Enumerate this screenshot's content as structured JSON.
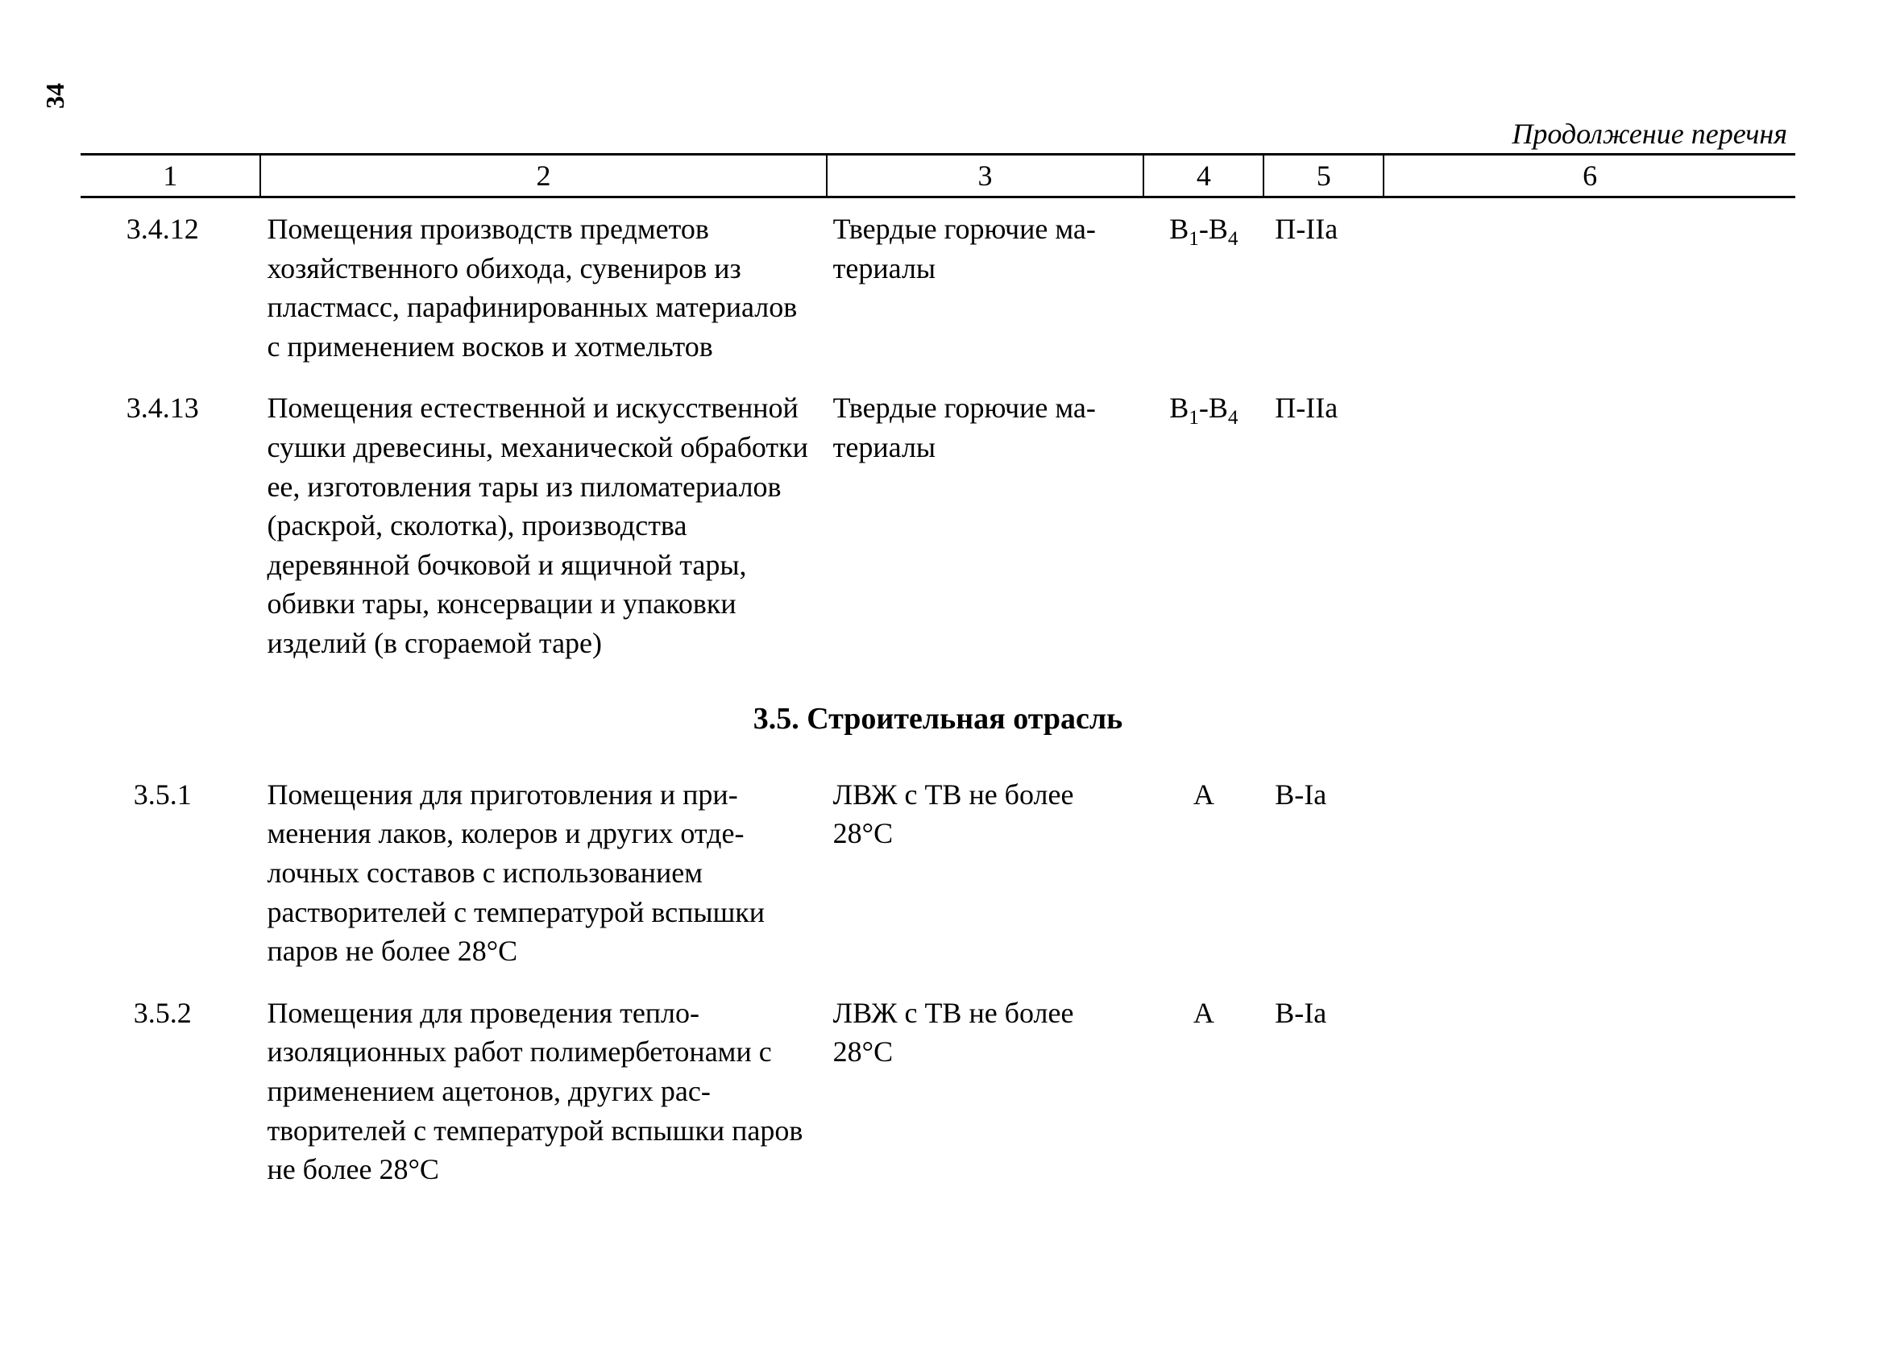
{
  "page_number": "34",
  "continuation_label": "Продолжение перечня",
  "colors": {
    "background": "#ffffff",
    "text": "#000000",
    "border": "#000000"
  },
  "typography": {
    "font_family": "Times New Roman",
    "body_fontsize": 36,
    "heading_fontsize": 38,
    "continuation_fontsize": 36,
    "page_number_fontsize": 32
  },
  "table": {
    "type": "table",
    "column_widths_pct": [
      10.5,
      33,
      18.5,
      7,
      7,
      24
    ],
    "border_width_header": 3,
    "border_width_divider": 2,
    "headers": [
      "1",
      "2",
      "3",
      "4",
      "5",
      "6"
    ],
    "rows": [
      {
        "c1": "3.4.12",
        "c2": "Помещения производств предметов хозяйственного обихода, сувениров из пластмасс, парафинированных ма­териалов с применением восков и хот­мельтов",
        "c3": "Твердые горючие ма­териалы",
        "c4_html": "В<sub>1</sub>-В<sub>4</sub>",
        "c5": "П-IIа",
        "c6": ""
      },
      {
        "c1": "3.4.13",
        "c2": "Помещения естественной и искусст­венной сушки древесины, механиче­ской обработки ее, изготовления тары из пиломатериалов (раскрой, сколотка), производства деревянной бочковой и ящичной тары, обивки тары, консерва­ции и упаковки изделий (в сгораемой таре)",
        "c3": "Твердые горючие ма­териалы",
        "c4_html": "В<sub>1</sub>-В<sub>4</sub>",
        "c5": "П-IIа",
        "c6": ""
      }
    ],
    "section_heading": "3.5. Строительная отрасль",
    "rows_after": [
      {
        "c1": "3.5.1",
        "c2": "Помещения для приготовления и при­менения лаков, колеров и других отде­лочных составов с использованием растворителей с температурой вспыш­ки паров не более 28°С",
        "c3": "ЛВЖ с ТВ не более 28°С",
        "c4_html": "А",
        "c5": "В-Iа",
        "c6": ""
      },
      {
        "c1": "3.5.2",
        "c2": "Помещения для проведения тепло­изоляционных работ полимербетонами с применением ацетонов, других рас­творителей с температурой вспышки паров не более 28°С",
        "c3": "ЛВЖ с ТВ не более 28°С",
        "c4_html": "А",
        "c5": "В-Iа",
        "c6": ""
      }
    ]
  }
}
